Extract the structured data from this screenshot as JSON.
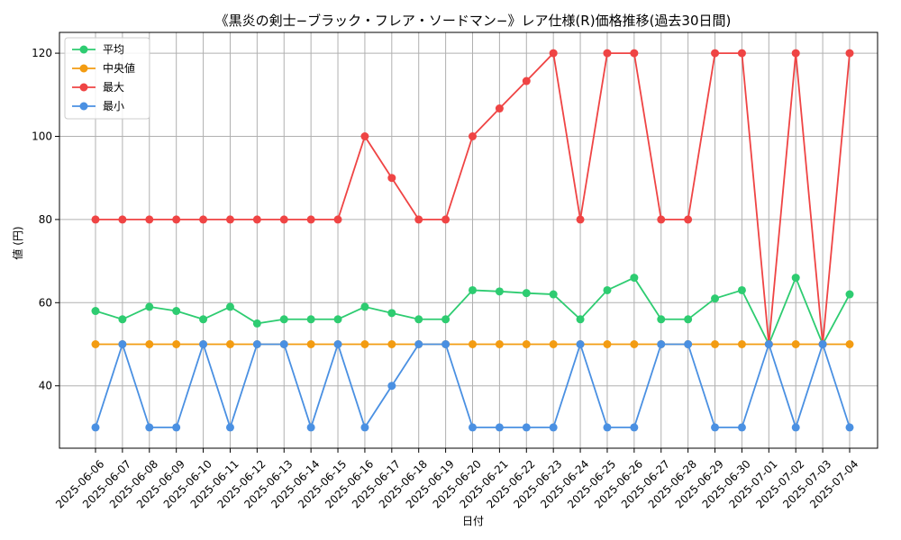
{
  "chart_data": {
    "type": "line",
    "title": "《黒炎の剣士−ブラック・フレア・ソードマン−》レア仕様(R)価格推移(過去30日間)",
    "xlabel": "日付",
    "ylabel": "値 (円)",
    "ylim": [
      25,
      125
    ],
    "yticks": [
      40,
      60,
      80,
      100,
      120
    ],
    "grid": true,
    "legend_position": "top-left",
    "categories": [
      "2025-06-06",
      "2025-06-07",
      "2025-06-08",
      "2025-06-09",
      "2025-06-10",
      "2025-06-11",
      "2025-06-12",
      "2025-06-13",
      "2025-06-14",
      "2025-06-15",
      "2025-06-16",
      "2025-06-17",
      "2025-06-18",
      "2025-06-19",
      "2025-06-20",
      "2025-06-21",
      "2025-06-22",
      "2025-06-23",
      "2025-06-24",
      "2025-06-25",
      "2025-06-26",
      "2025-06-27",
      "2025-06-28",
      "2025-06-29",
      "2025-06-30",
      "2025-07-01",
      "2025-07-02",
      "2025-07-03",
      "2025-07-04"
    ],
    "series": [
      {
        "name": "平均",
        "color": "#2ecc71",
        "values": [
          58,
          56,
          59,
          58,
          56,
          59,
          55,
          56,
          56,
          56,
          59,
          57.5,
          56,
          56,
          63,
          62.7,
          62.3,
          62,
          56,
          63,
          66,
          56,
          56,
          61,
          63,
          50,
          66,
          50,
          62
        ]
      },
      {
        "name": "中央値",
        "color": "#f39c12",
        "values": [
          50,
          50,
          50,
          50,
          50,
          50,
          50,
          50,
          50,
          50,
          50,
          50,
          50,
          50,
          50,
          50,
          50,
          50,
          50,
          50,
          50,
          50,
          50,
          50,
          50,
          50,
          50,
          50,
          50
        ]
      },
      {
        "name": "最大",
        "color": "#ef4444",
        "values": [
          80,
          80,
          80,
          80,
          80,
          80,
          80,
          80,
          80,
          80,
          100,
          90,
          80,
          80,
          100,
          106.7,
          113.3,
          120,
          80,
          120,
          120,
          80,
          80,
          120,
          120,
          50,
          120,
          50,
          120
        ]
      },
      {
        "name": "最小",
        "color": "#4a90e2",
        "values": [
          30,
          50,
          30,
          30,
          50,
          30,
          50,
          50,
          30,
          50,
          30,
          40,
          50,
          50,
          30,
          30,
          30,
          30,
          50,
          30,
          30,
          50,
          50,
          30,
          30,
          50,
          30,
          50,
          30
        ]
      }
    ]
  }
}
